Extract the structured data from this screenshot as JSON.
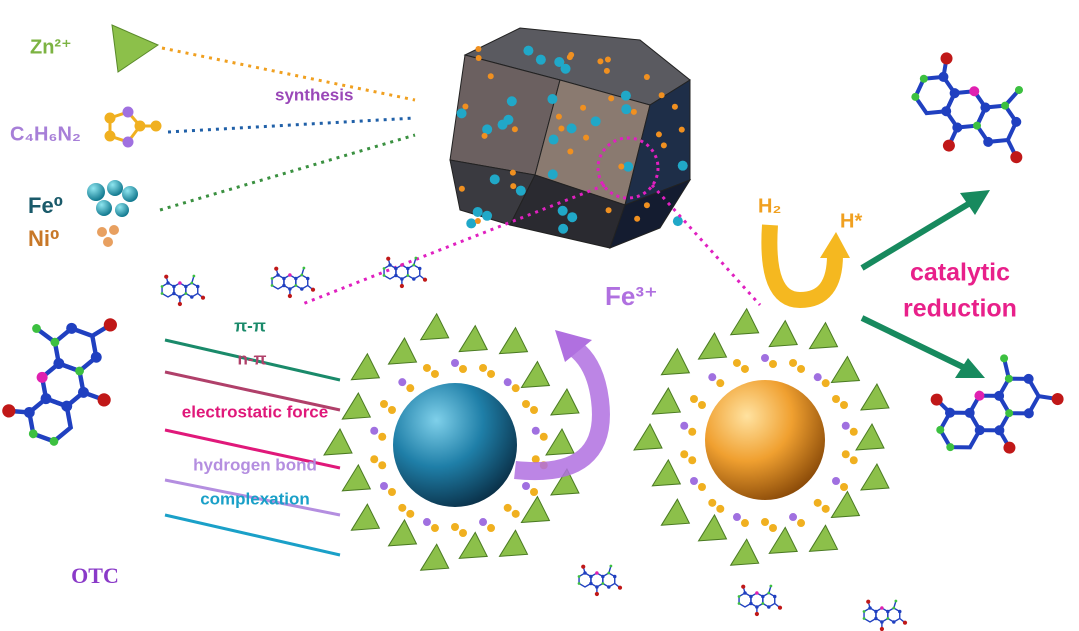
{
  "precursors": [
    {
      "label": "Zn²⁺"
    },
    {
      "label": "C₄H₆N₂"
    },
    {
      "label": "Fe⁰"
    },
    {
      "label": "Ni⁰"
    }
  ],
  "synthesis_label": "synthesis",
  "interactions": [
    "π-π",
    "n-π",
    "electrostatic force",
    "hydrogen bond",
    "complexation"
  ],
  "molecule_label": "OTC",
  "ion_label": "Fe³⁺",
  "reactant_label": "H₂",
  "product_label": "H*",
  "reaction_label": [
    "catalytic",
    "reduction"
  ]
}
